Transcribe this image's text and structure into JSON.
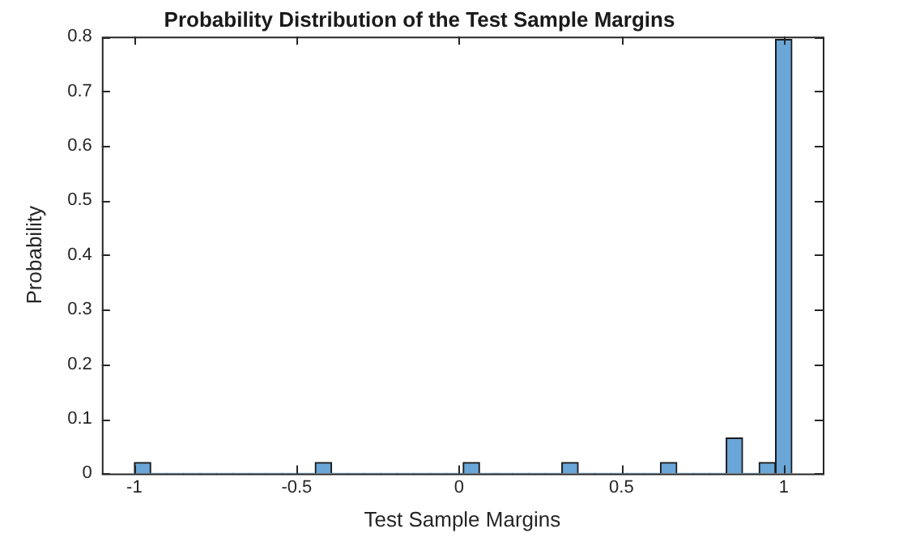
{
  "chart_data": {
    "type": "histogram",
    "title": "Probability Distribution of the Test Sample Margins",
    "xlabel": "Test Sample Margins",
    "ylabel": "Probability",
    "bins": [
      -1,
      -0.9494,
      -0.8988,
      -0.8481,
      -0.7975,
      -0.7469,
      -0.6963,
      -0.6456,
      -0.595,
      -0.5444,
      -0.4938,
      -0.4431,
      -0.3925,
      -0.3419,
      -0.2913,
      -0.2406,
      -0.19,
      -0.1394,
      -0.0888,
      -0.0381,
      0.0125,
      0.0631,
      0.1138,
      0.1644,
      0.215,
      0.2656,
      0.3163,
      0.3669,
      0.4175,
      0.4681,
      0.5188,
      0.5694,
      0.62,
      0.6706,
      0.7213,
      0.7719,
      0.8225,
      0.8731,
      0.9238,
      0.9744,
      1.025
    ],
    "values": [
      0.02,
      0,
      0,
      0,
      0,
      0,
      0,
      0,
      0,
      0,
      0,
      0.02,
      0,
      0,
      0,
      0,
      0,
      0,
      0,
      0,
      0.02,
      0,
      0,
      0,
      0,
      0,
      0.02,
      0,
      0,
      0,
      0,
      0,
      0.02,
      0,
      0,
      0,
      0.065,
      0,
      0.02,
      0.795
    ],
    "color": "#6aa6d8",
    "xlim": [
      -1.1,
      1.12
    ],
    "xticks": [
      -1,
      -0.5,
      0,
      0.5,
      1
    ],
    "ylim": [
      0,
      0.8
    ],
    "yticks": [
      0,
      0.1,
      0.2,
      0.3,
      0.4,
      0.5,
      0.6,
      0.7,
      0.8
    ],
    "grid": false,
    "legend": false
  }
}
